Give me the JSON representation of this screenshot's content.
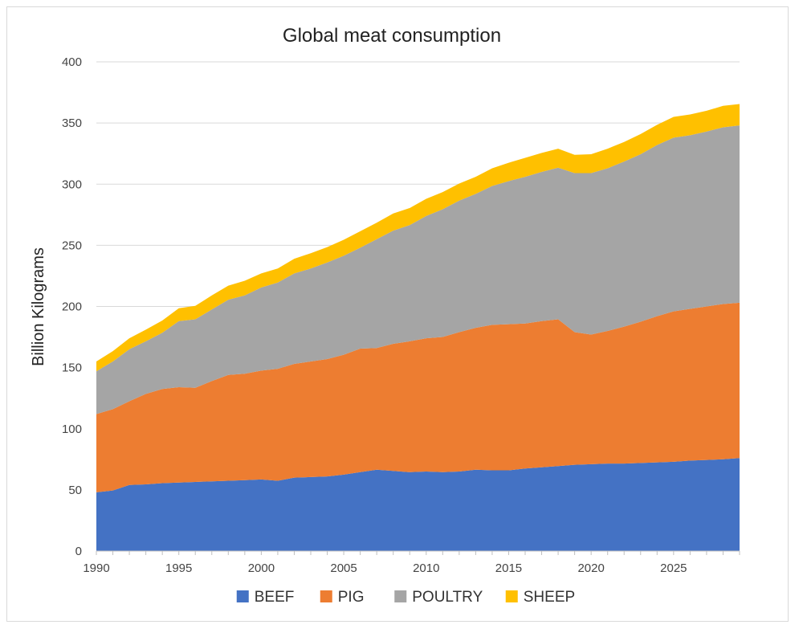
{
  "chart_data": {
    "type": "area",
    "stacked": true,
    "title": "Global meat consumption",
    "xlabel": "",
    "ylabel": "Billion Kilograms",
    "xlim": [
      1990,
      2029
    ],
    "ylim": [
      0,
      400
    ],
    "x_ticks": [
      "1990",
      "1995",
      "2000",
      "2005",
      "2010",
      "2015",
      "2020",
      "2025"
    ],
    "y_ticks": [
      "0",
      "50",
      "100",
      "150",
      "200",
      "250",
      "300",
      "350",
      "400"
    ],
    "grid": "horizontal",
    "legend_position": "bottom",
    "x": [
      1990,
      1991,
      1992,
      1993,
      1994,
      1995,
      1996,
      1997,
      1998,
      1999,
      2000,
      2001,
      2002,
      2003,
      2004,
      2005,
      2006,
      2007,
      2008,
      2009,
      2010,
      2011,
      2012,
      2013,
      2014,
      2015,
      2016,
      2017,
      2018,
      2019,
      2020,
      2021,
      2022,
      2023,
      2024,
      2025,
      2026,
      2027,
      2028,
      2029
    ],
    "series": [
      {
        "name": "BEEF",
        "color": "#4472c4",
        "values": [
          48,
          49.5,
          54,
          54.5,
          55.5,
          56,
          56.5,
          57,
          57.5,
          58,
          58.5,
          57.5,
          60,
          60.5,
          61,
          62.5,
          64.5,
          66.5,
          65.5,
          64.5,
          65,
          64.5,
          65,
          66.5,
          66,
          66,
          67.5,
          68.5,
          69.5,
          70.5,
          71,
          71.5,
          71.5,
          72,
          72.5,
          73,
          74,
          74.5,
          75,
          76
        ]
      },
      {
        "name": "PIG",
        "color": "#ed7d31",
        "values": [
          64,
          66.5,
          68.5,
          74,
          77,
          78,
          77,
          82,
          86.5,
          87,
          89,
          91.5,
          93,
          94.5,
          96,
          98,
          101,
          99.5,
          104,
          107,
          109,
          110.5,
          114,
          116,
          119,
          119.5,
          118.5,
          119.5,
          120,
          108.5,
          106,
          108.5,
          112,
          115.5,
          119.5,
          123,
          124,
          125.5,
          127,
          127
        ]
      },
      {
        "name": "POULTRY",
        "color": "#a5a5a5",
        "values": [
          35,
          39,
          42.5,
          43,
          46,
          54,
          56,
          58.5,
          61.5,
          64,
          68,
          70.5,
          74,
          76,
          79,
          81,
          82.5,
          89,
          92.5,
          95,
          100,
          104.5,
          107.5,
          109.5,
          113.5,
          117,
          120,
          122,
          124,
          130,
          132,
          133,
          135,
          137,
          140,
          142,
          142,
          143,
          144.5,
          145
        ]
      },
      {
        "name": "SHEEP",
        "color": "#ffc000",
        "values": [
          8,
          8.5,
          9,
          9.5,
          10,
          10.5,
          11,
          11.5,
          11.5,
          12,
          11.5,
          11.5,
          12,
          12.5,
          12.5,
          13,
          13.5,
          13.5,
          14,
          14,
          14,
          14,
          14,
          14,
          14.5,
          15,
          15.5,
          15.5,
          15.5,
          15,
          15.5,
          16,
          16,
          16.5,
          16.5,
          17,
          17,
          17,
          17.5,
          17.5
        ]
      }
    ]
  }
}
